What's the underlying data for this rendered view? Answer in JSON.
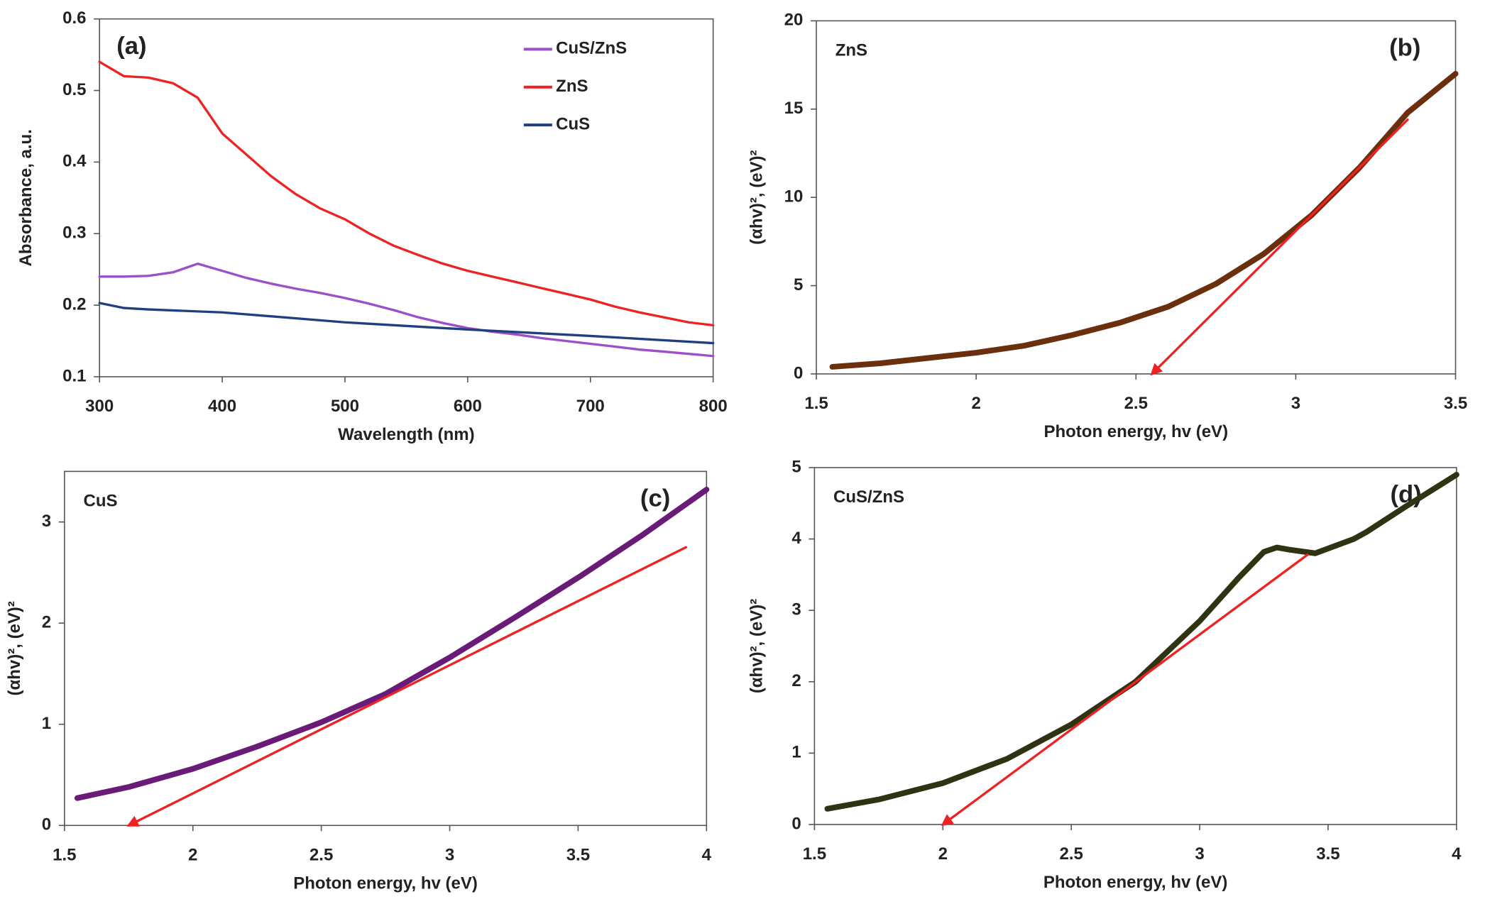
{
  "chart_data": [
    {
      "type": "line",
      "panel_label": "(a)",
      "x_label": "Wavelength (nm)",
      "y_label": "Absorbance, a.u.",
      "xlim": [
        300,
        800
      ],
      "xticks": [
        300,
        400,
        500,
        600,
        700,
        800
      ],
      "ylim": [
        0.1,
        0.6
      ],
      "yticks": [
        0.1,
        0.2,
        0.3,
        0.4,
        0.5,
        0.6
      ],
      "legend": "upper right",
      "series": [
        {
          "name": "CuS/ZnS",
          "color": "#9b4fc9",
          "x": [
            300,
            320,
            340,
            360,
            380,
            400,
            420,
            440,
            460,
            480,
            500,
            520,
            540,
            560,
            580,
            600,
            620,
            640,
            660,
            680,
            700,
            720,
            740,
            760,
            780,
            800
          ],
          "values": [
            0.24,
            0.24,
            0.241,
            0.246,
            0.258,
            0.248,
            0.238,
            0.23,
            0.223,
            0.217,
            0.21,
            0.202,
            0.193,
            0.183,
            0.175,
            0.168,
            0.163,
            0.159,
            0.154,
            0.15,
            0.146,
            0.142,
            0.138,
            0.135,
            0.132,
            0.129
          ]
        },
        {
          "name": "ZnS",
          "color": "#ee2222",
          "x": [
            300,
            320,
            340,
            360,
            380,
            400,
            420,
            440,
            460,
            480,
            500,
            520,
            540,
            560,
            580,
            600,
            620,
            640,
            660,
            680,
            700,
            720,
            740,
            760,
            780,
            800
          ],
          "values": [
            0.54,
            0.52,
            0.518,
            0.51,
            0.49,
            0.44,
            0.41,
            0.38,
            0.355,
            0.335,
            0.32,
            0.3,
            0.283,
            0.27,
            0.258,
            0.248,
            0.24,
            0.232,
            0.224,
            0.216,
            0.208,
            0.198,
            0.19,
            0.183,
            0.176,
            0.172
          ]
        },
        {
          "name": "CuS",
          "color": "#1f3f7f",
          "x": [
            300,
            320,
            340,
            400,
            500,
            600,
            700,
            800
          ],
          "values": [
            0.203,
            0.196,
            0.194,
            0.19,
            0.176,
            0.166,
            0.157,
            0.147
          ]
        }
      ]
    },
    {
      "type": "line",
      "panel_label": "(b)",
      "annotation": "ZnS",
      "x_label": "Photon energy, hv (eV)",
      "y_label": "(αhv)², (eV)²",
      "xlim": [
        1.5,
        3.5
      ],
      "xticks": [
        1.5,
        2,
        2.5,
        3,
        3.5
      ],
      "ylim": [
        0,
        20
      ],
      "yticks": [
        0,
        5,
        10,
        15,
        20
      ],
      "series": [
        {
          "color": "#6b2f0e",
          "x": [
            1.55,
            1.7,
            1.85,
            2.0,
            2.15,
            2.3,
            2.45,
            2.6,
            2.75,
            2.9,
            3.05,
            3.2,
            3.35,
            3.5
          ],
          "values": [
            0.4,
            0.6,
            0.9,
            1.2,
            1.6,
            2.2,
            2.9,
            3.8,
            5.1,
            6.8,
            9.0,
            11.7,
            14.8,
            17.0
          ]
        },
        {
          "color": "#ee2222",
          "tangent": true,
          "x": [
            3.35,
            2.55
          ],
          "values": [
            14.4,
            0
          ]
        }
      ]
    },
    {
      "type": "line",
      "panel_label": "(c)",
      "annotation": "CuS",
      "x_label": "Photon energy, hv (eV)",
      "y_label": "(αhv)², (eV)²",
      "xlim": [
        1.5,
        4
      ],
      "xticks": [
        1.5,
        2,
        2.5,
        3,
        3.5,
        4
      ],
      "ylim": [
        0,
        3.5
      ],
      "yticks": [
        0,
        1,
        2,
        3
      ],
      "series": [
        {
          "color": "#6a1b78",
          "x": [
            1.55,
            1.75,
            2.0,
            2.25,
            2.5,
            2.75,
            3.0,
            3.25,
            3.5,
            3.75,
            4.0
          ],
          "values": [
            0.27,
            0.38,
            0.56,
            0.78,
            1.02,
            1.3,
            1.66,
            2.05,
            2.45,
            2.87,
            3.32
          ]
        },
        {
          "color": "#ee2222",
          "tangent": true,
          "x": [
            3.92,
            1.75
          ],
          "values": [
            2.75,
            0
          ]
        }
      ]
    },
    {
      "type": "line",
      "panel_label": "(d)",
      "annotation": "CuS/ZnS",
      "x_label": "Photon energy, hv (eV)",
      "y_label": "(αhv)², (eV)²",
      "xlim": [
        1.5,
        4
      ],
      "xticks": [
        1.5,
        2,
        2.5,
        3,
        3.5,
        4
      ],
      "ylim": [
        0,
        5
      ],
      "yticks": [
        0,
        1,
        2,
        3,
        4,
        5
      ],
      "series": [
        {
          "color": "#2f3312",
          "x": [
            1.55,
            1.75,
            2.0,
            2.25,
            2.5,
            2.75,
            3.0,
            3.15,
            3.25,
            3.3,
            3.35,
            3.45,
            3.6,
            3.65,
            3.8,
            4.0
          ],
          "values": [
            0.22,
            0.35,
            0.58,
            0.92,
            1.4,
            2.0,
            2.85,
            3.45,
            3.82,
            3.88,
            3.85,
            3.8,
            4.0,
            4.1,
            4.45,
            4.9
          ]
        },
        {
          "color": "#ee2222",
          "tangent": true,
          "x": [
            3.42,
            2.0
          ],
          "values": [
            3.78,
            0
          ]
        }
      ]
    }
  ]
}
